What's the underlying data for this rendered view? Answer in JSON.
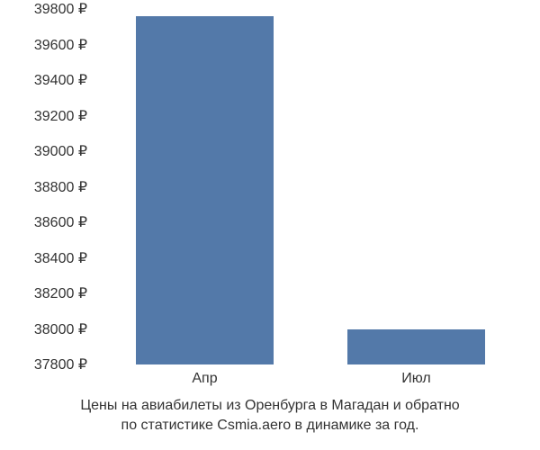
{
  "chart": {
    "type": "bar",
    "background_color": "#ffffff",
    "bar_color": "#5379a9",
    "text_color": "#333333",
    "currency_symbol": "₽",
    "y_axis": {
      "min": 37800,
      "max": 39800,
      "tick_step": 200,
      "ticks": [
        {
          "value": 37800,
          "label": "37800 ₽"
        },
        {
          "value": 38000,
          "label": "38000 ₽"
        },
        {
          "value": 38200,
          "label": "38200 ₽"
        },
        {
          "value": 38400,
          "label": "38400 ₽"
        },
        {
          "value": 38600,
          "label": "38600 ₽"
        },
        {
          "value": 38800,
          "label": "38800 ₽"
        },
        {
          "value": 39000,
          "label": "39000 ₽"
        },
        {
          "value": 39200,
          "label": "39200 ₽"
        },
        {
          "value": 39400,
          "label": "39400 ₽"
        },
        {
          "value": 39600,
          "label": "39600 ₽"
        },
        {
          "value": 39800,
          "label": "39800 ₽"
        }
      ],
      "label_fontsize": 16
    },
    "x_axis": {
      "categories": [
        "Апр",
        "Июл"
      ],
      "label_fontsize": 16
    },
    "data": [
      {
        "category": "Апр",
        "value": 39760
      },
      {
        "category": "Июл",
        "value": 38000
      }
    ],
    "bar_width_ratio": 0.65,
    "caption": {
      "line1": "Цены на авиабилеты из Оренбурга в Магадан и обратно",
      "line2": "по статистике Csmia.aero в динамике за год.",
      "fontsize": 16
    }
  }
}
